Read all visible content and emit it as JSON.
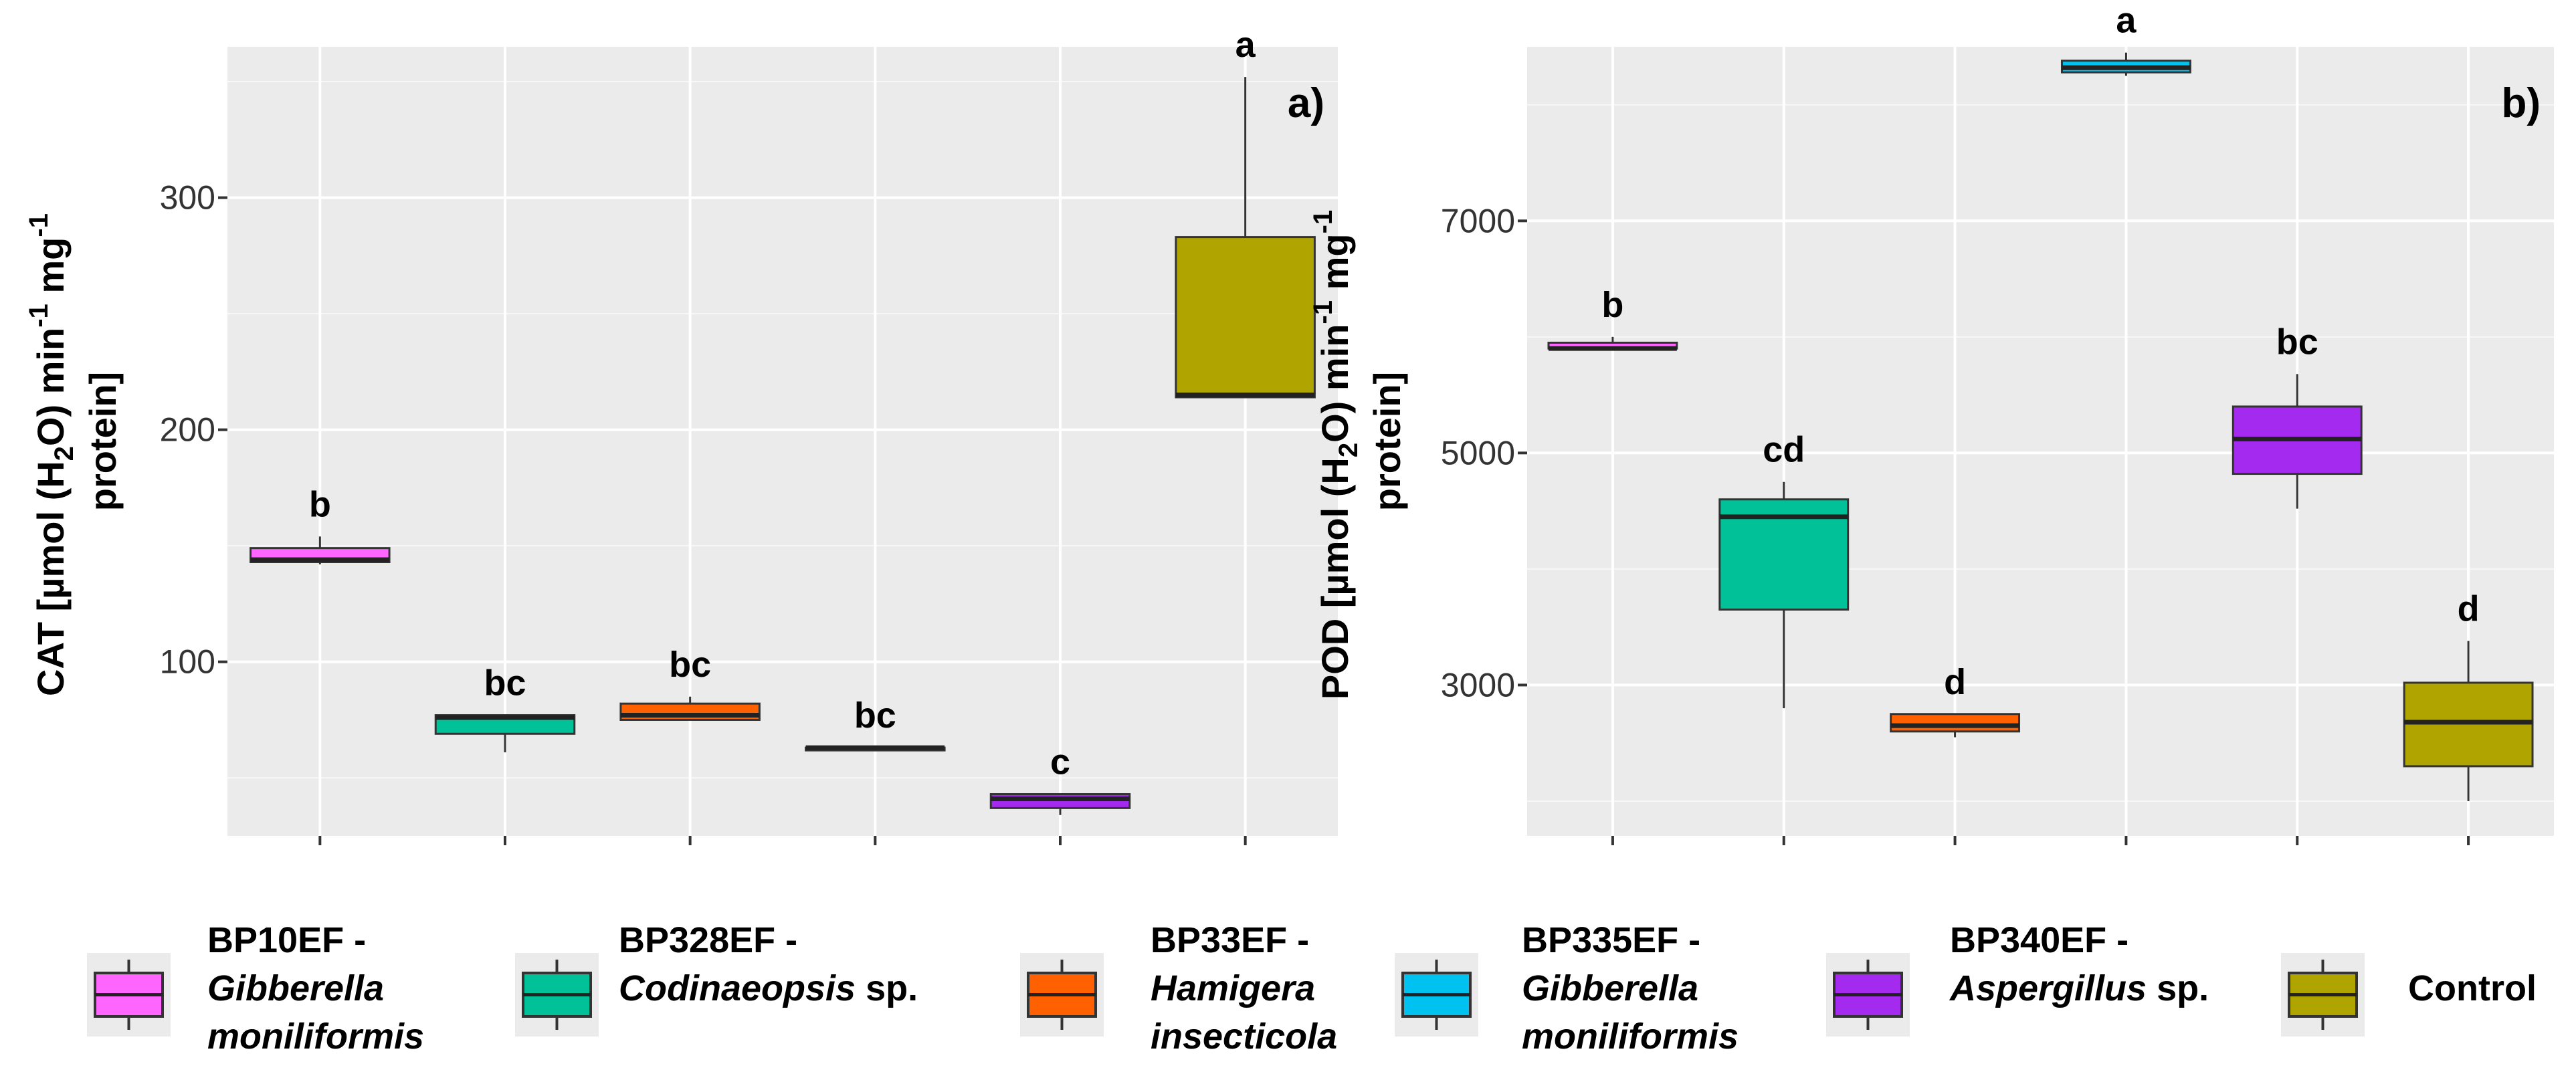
{
  "chart_data": [
    {
      "type": "box",
      "panel_label": "a)",
      "ylabel_lines": [
        "CAT [µmol (H",
        "2",
        "O) min",
        "-1",
        " mg",
        "-1"
      ],
      "ylabel_line2": "protein]",
      "ylim": [
        25,
        365
      ],
      "yticks": [
        100,
        200,
        300
      ],
      "categories": [
        "BP10EF",
        "BP328EF",
        "BP33EF",
        "BP335EF",
        "BP340EF",
        "Control"
      ],
      "boxes": [
        {
          "group": "BP10EF",
          "min": 142,
          "q1": 143,
          "median": 144,
          "q3": 149,
          "max": 154,
          "letter": "b"
        },
        {
          "group": "BP328EF",
          "min": 61,
          "q1": 69,
          "median": 76,
          "q3": 77,
          "max": 77,
          "letter": "bc"
        },
        {
          "group": "BP33EF",
          "min": 75,
          "q1": 75,
          "median": 77,
          "q3": 82,
          "max": 85,
          "letter": "bc"
        },
        {
          "group": "BP335EF",
          "min": 63,
          "q1": 63,
          "median": 63,
          "q3": 63,
          "max": 63,
          "letter": "bc"
        },
        {
          "group": "BP340EF",
          "min": 34,
          "q1": 37,
          "median": 41,
          "q3": 43,
          "max": 43,
          "letter": "c"
        },
        {
          "group": "Control",
          "min": 214,
          "q1": 214,
          "median": 215,
          "q3": 283,
          "max": 352,
          "letter": "a"
        }
      ]
    },
    {
      "type": "box",
      "panel_label": "b)",
      "ylabel_lines": [
        "POD [µmol (H",
        "2",
        "O) min",
        "-1",
        " mg",
        "-1"
      ],
      "ylabel_line2": "protein]",
      "ylim": [
        1700,
        8500
      ],
      "yticks": [
        3000,
        5000,
        7000
      ],
      "categories": [
        "BP10EF",
        "BP328EF",
        "BP33EF",
        "BP335EF",
        "BP340EF",
        "Control"
      ],
      "boxes": [
        {
          "group": "BP10EF",
          "min": 5900,
          "q1": 5900,
          "median": 5900,
          "q3": 5950,
          "max": 6000,
          "letter": "b"
        },
        {
          "group": "BP328EF",
          "min": 2800,
          "q1": 3650,
          "median": 4450,
          "q3": 4600,
          "max": 4750,
          "letter": "cd"
        },
        {
          "group": "BP33EF",
          "min": 2550,
          "q1": 2600,
          "median": 2650,
          "q3": 2750,
          "max": 2750,
          "letter": "d"
        },
        {
          "group": "BP335EF",
          "min": 8250,
          "q1": 8280,
          "median": 8320,
          "q3": 8380,
          "max": 8450,
          "letter": "a"
        },
        {
          "group": "BP340EF",
          "min": 4520,
          "q1": 4820,
          "median": 5120,
          "q3": 5400,
          "max": 5680,
          "letter": "bc"
        },
        {
          "group": "Control",
          "min": 2000,
          "q1": 2300,
          "median": 2680,
          "q3": 3020,
          "max": 3380,
          "letter": "d"
        }
      ]
    }
  ],
  "legend": [
    {
      "code": "BP10EF -",
      "name_italic": "Gibberella",
      "name_plain": "",
      "line3": "moniliformis",
      "color": "#FF66FF"
    },
    {
      "code": "BP328EF -",
      "name_italic": "Codinaeopsis",
      "name_plain": " sp.",
      "line3": "",
      "color": "#00C197"
    },
    {
      "code": "BP33EF -",
      "name_italic": "Hamigera",
      "name_plain": "",
      "line3": "insecticola",
      "color": "#FF6100"
    },
    {
      "code": "BP335EF -",
      "name_italic": "Gibberella",
      "name_plain": "",
      "line3": "moniliformis",
      "color": "#00C2F0"
    },
    {
      "code": "BP340EF -",
      "name_italic": "Aspergillus",
      "name_plain": " sp.",
      "line3": "",
      "color": "#A52AEF"
    },
    {
      "code": "Control",
      "name_italic": "",
      "name_plain": "",
      "line3": "",
      "color": "#B0A500"
    }
  ]
}
